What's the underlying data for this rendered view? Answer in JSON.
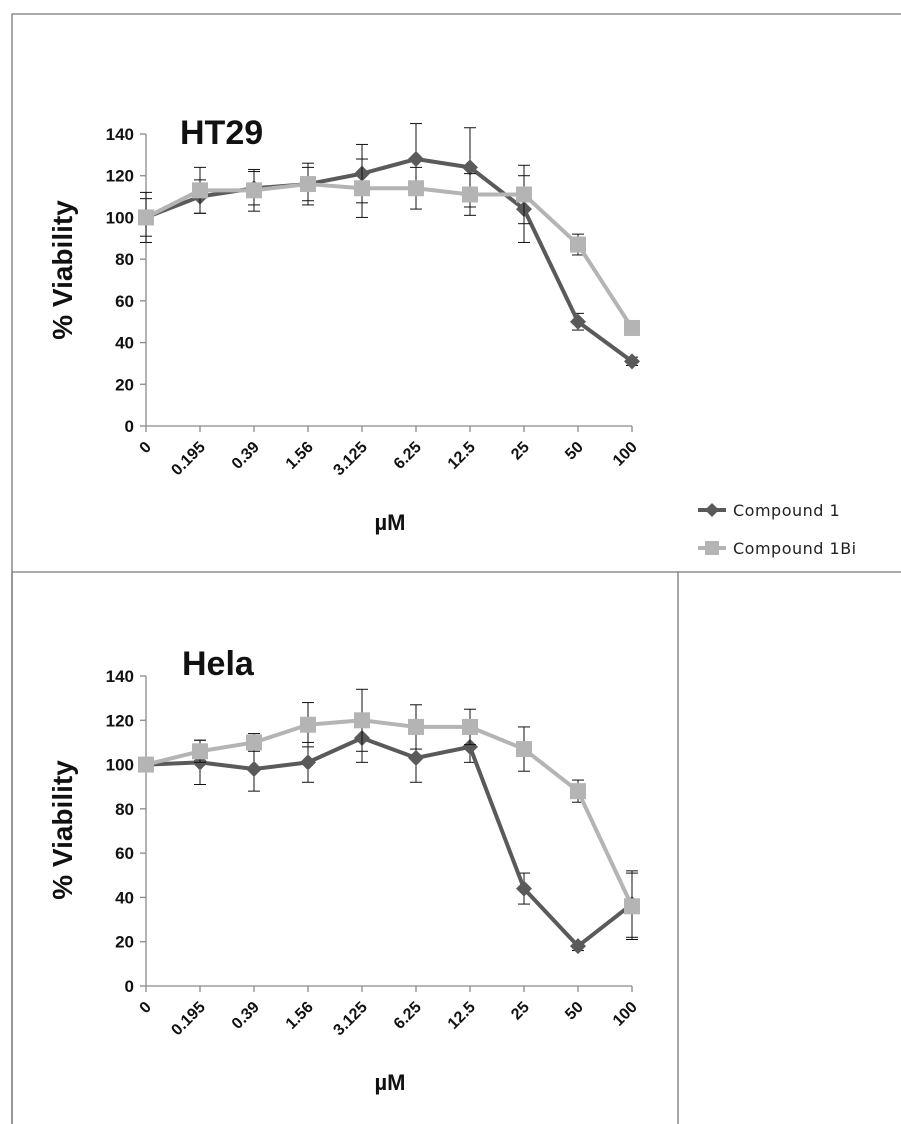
{
  "chart_data": [
    {
      "type": "line",
      "title": "HT29",
      "ylabel": "% Viability",
      "xlabel": "µM",
      "categories": [
        "0",
        "0.195",
        "0.39",
        "1.56",
        "3.125",
        "6.25",
        "12.5",
        "25",
        "50",
        "100"
      ],
      "ylim": [
        0,
        140
      ],
      "yticks": [
        0,
        20,
        40,
        60,
        80,
        100,
        120,
        140
      ],
      "grid": false,
      "legend_position": "right",
      "series": [
        {
          "name": "Compound 1",
          "color": "#5a5a5a",
          "marker": "diamond",
          "values": [
            100,
            110,
            114,
            116,
            121,
            128,
            124,
            104,
            50,
            31
          ],
          "errors": [
            12,
            8,
            8,
            10,
            14,
            17,
            19,
            16,
            4,
            2
          ]
        },
        {
          "name": "Compound 1Bi",
          "color": "#b4b4b4",
          "marker": "square",
          "values": [
            100,
            113,
            113,
            116,
            114,
            114,
            111,
            111,
            87,
            47
          ],
          "errors": [
            9,
            11,
            10,
            8,
            14,
            10,
            10,
            14,
            5,
            2
          ]
        }
      ]
    },
    {
      "type": "line",
      "title": "Hela",
      "ylabel": "% Viability",
      "xlabel": "µM",
      "categories": [
        "0",
        "0.195",
        "0.39",
        "1.56",
        "3.125",
        "6.25",
        "12.5",
        "25",
        "50",
        "100"
      ],
      "ylim": [
        0,
        140
      ],
      "yticks": [
        0,
        20,
        40,
        60,
        80,
        100,
        120,
        140
      ],
      "grid": false,
      "legend_position": "none",
      "series": [
        {
          "name": "Compound 1",
          "color": "#5a5a5a",
          "marker": "diamond",
          "values": [
            100,
            101,
            98,
            101,
            112,
            103,
            108,
            44,
            18,
            37
          ],
          "errors": [
            3,
            10,
            10,
            9,
            11,
            11,
            7,
            7,
            2,
            15
          ]
        },
        {
          "name": "Compound 1Bi",
          "color": "#b4b4b4",
          "marker": "square",
          "values": [
            100,
            106,
            110,
            118,
            120,
            117,
            117,
            107,
            88,
            36
          ],
          "errors": [
            3,
            5,
            4,
            10,
            14,
            10,
            8,
            10,
            5,
            15
          ]
        }
      ]
    }
  ]
}
